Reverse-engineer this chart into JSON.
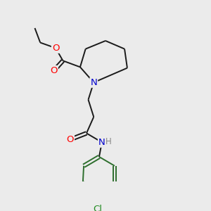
{
  "background_color": "#ebebeb",
  "bond_color": "#2d6e2d",
  "ring_bond_color": "#2d6e2d",
  "main_bond_color": "#1a1a1a",
  "bond_width": 1.4,
  "atom_colors": {
    "O": "#ff0000",
    "N": "#0000cc",
    "Cl": "#228b22",
    "C": "#1a1a1a",
    "H": "#888888"
  },
  "font_size_atom": 8.5,
  "fig_width": 3.0,
  "fig_height": 3.0
}
